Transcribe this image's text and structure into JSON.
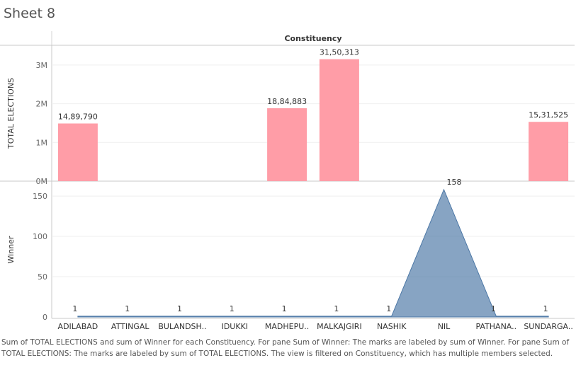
{
  "sheet": {
    "title": "Sheet 8"
  },
  "chart_data": {
    "type": "bar",
    "title": "",
    "xlabel": "Constituency",
    "categories": [
      "ADILABAD",
      "ATTINGAL",
      "BULANDSH..",
      "IDUKKI",
      "MADHEPU..",
      "MALKAJGIRI",
      "NASHIK",
      "NIL",
      "PATHANA..",
      "SUNDARGA.."
    ],
    "panes": [
      {
        "name": "TOTAL ELECTIONS",
        "ylabel": "TOTAL ELECTIONS",
        "mark": "bar",
        "values": [
          1489790,
          null,
          null,
          null,
          1884883,
          3150313,
          null,
          null,
          null,
          1531525
        ],
        "labels": [
          "14,89,790",
          "",
          "",
          "",
          "18,84,883",
          "31,50,313",
          "",
          "",
          "",
          "15,31,525"
        ],
        "ylim": [
          0,
          3400000
        ],
        "ticks": [
          0,
          1000000,
          2000000,
          3000000
        ],
        "tick_labels": [
          "0M",
          "1M",
          "2M",
          "3M"
        ],
        "color": "#ff9da7"
      },
      {
        "name": "Winner",
        "ylabel": "Winner",
        "mark": "area",
        "values": [
          1,
          1,
          1,
          1,
          1,
          1,
          1,
          158,
          1,
          1
        ],
        "labels": [
          "1",
          "1",
          "1",
          "1",
          "1",
          "1",
          "1",
          "158",
          "1",
          "1"
        ],
        "ylim": [
          0,
          165
        ],
        "ticks": [
          0,
          50,
          100,
          150
        ],
        "tick_labels": [
          "0",
          "50",
          "100",
          "150"
        ],
        "color": "#4e79a7"
      }
    ]
  },
  "caption": "Sum of TOTAL ELECTIONS and sum of Winner for each Constituency.  For pane Sum of Winner:  The marks are labeled by sum of Winner.  For pane Sum of TOTAL ELECTIONS:  The marks are labeled by sum of TOTAL ELECTIONS. The view is filtered on Constituency, which has multiple members selected."
}
